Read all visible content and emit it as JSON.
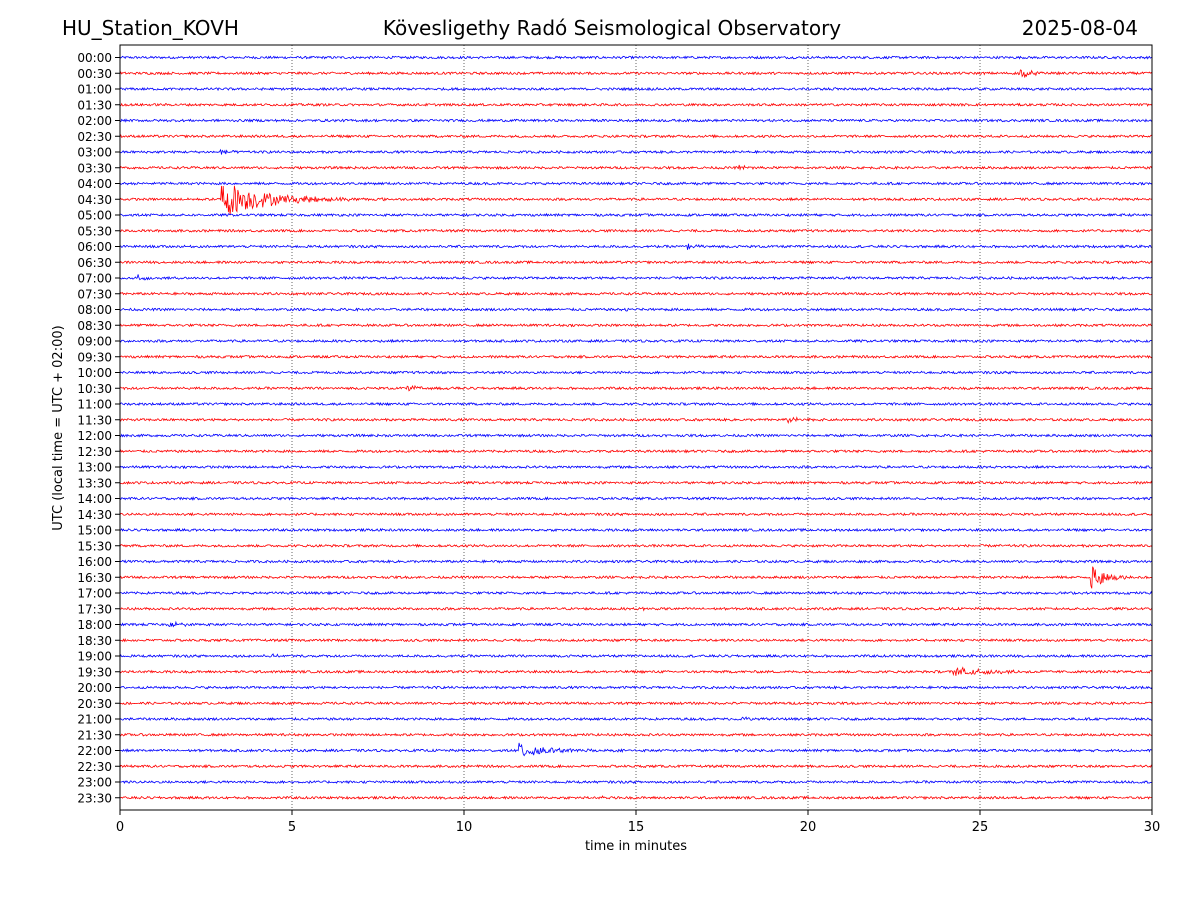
{
  "header": {
    "station": "HU_Station_KOVH",
    "observatory": "Kövesligethy Radó Seismological Observatory",
    "date": "2025-08-04"
  },
  "chart_data": {
    "type": "line",
    "title": "Kövesligethy Radó Seismological Observatory",
    "xlabel": "time in minutes",
    "ylabel": "UTC (local time = UTC + 02:00)",
    "xlim": [
      0,
      30
    ],
    "xticks": [
      0,
      5,
      10,
      15,
      20,
      25,
      30
    ],
    "grid": "vertical dotted at x ticks",
    "trace_colors": [
      "#0000ff",
      "#ff0000"
    ],
    "rows": [
      "00:00",
      "00:30",
      "01:00",
      "01:30",
      "02:00",
      "02:30",
      "03:00",
      "03:30",
      "04:00",
      "04:30",
      "05:00",
      "05:30",
      "06:00",
      "06:30",
      "07:00",
      "07:30",
      "08:00",
      "08:30",
      "09:00",
      "09:30",
      "10:00",
      "10:30",
      "11:00",
      "11:30",
      "12:00",
      "12:30",
      "13:00",
      "13:30",
      "14:00",
      "14:30",
      "15:00",
      "15:30",
      "16:00",
      "16:30",
      "17:00",
      "17:30",
      "18:00",
      "18:30",
      "19:00",
      "19:30",
      "20:00",
      "20:30",
      "21:00",
      "21:30",
      "22:00",
      "22:30",
      "23:00",
      "23:30"
    ],
    "events": [
      {
        "row": "00:30",
        "start_min": 26.1,
        "duration_min": 1.2,
        "amplitude": 1.6
      },
      {
        "row": "01:00",
        "start_min": 20.5,
        "duration_min": 0.9,
        "amplitude": 0.6
      },
      {
        "row": "03:00",
        "start_min": 2.9,
        "duration_min": 0.7,
        "amplitude": 0.9
      },
      {
        "row": "03:30",
        "start_min": 18.0,
        "duration_min": 1.2,
        "amplitude": 0.8
      },
      {
        "row": "04:00",
        "start_min": 16.7,
        "duration_min": 0.3,
        "amplitude": 0.6
      },
      {
        "row": "04:30",
        "start_min": 2.9,
        "duration_min": 5.0,
        "amplitude": 5.0
      },
      {
        "row": "06:00",
        "start_min": 16.5,
        "duration_min": 0.8,
        "amplitude": 0.8
      },
      {
        "row": "07:00",
        "start_min": 0.5,
        "duration_min": 1.0,
        "amplitude": 1.0
      },
      {
        "row": "08:00",
        "start_min": 14.7,
        "duration_min": 1.2,
        "amplitude": 0.6
      },
      {
        "row": "10:30",
        "start_min": 8.3,
        "duration_min": 1.5,
        "amplitude": 0.8
      },
      {
        "row": "11:30",
        "start_min": 19.4,
        "duration_min": 1.2,
        "amplitude": 0.9
      },
      {
        "row": "16:30",
        "start_min": 28.2,
        "duration_min": 1.8,
        "amplitude": 3.5
      },
      {
        "row": "17:30",
        "start_min": 15.2,
        "duration_min": 0.8,
        "amplitude": 0.4
      },
      {
        "row": "18:00",
        "start_min": 1.4,
        "duration_min": 1.1,
        "amplitude": 1.1
      },
      {
        "row": "19:00",
        "start_min": 4.4,
        "duration_min": 0.6,
        "amplitude": 0.4
      },
      {
        "row": "19:30",
        "start_min": 24.2,
        "duration_min": 4.2,
        "amplitude": 1.3
      },
      {
        "row": "21:00",
        "start_min": 18.1,
        "duration_min": 0.8,
        "amplitude": 0.5
      },
      {
        "row": "22:00",
        "start_min": 11.6,
        "duration_min": 3.2,
        "amplitude": 2.2
      },
      {
        "row": "23:30",
        "start_min": 14.0,
        "duration_min": 0.3,
        "amplitude": 0.4
      }
    ]
  }
}
